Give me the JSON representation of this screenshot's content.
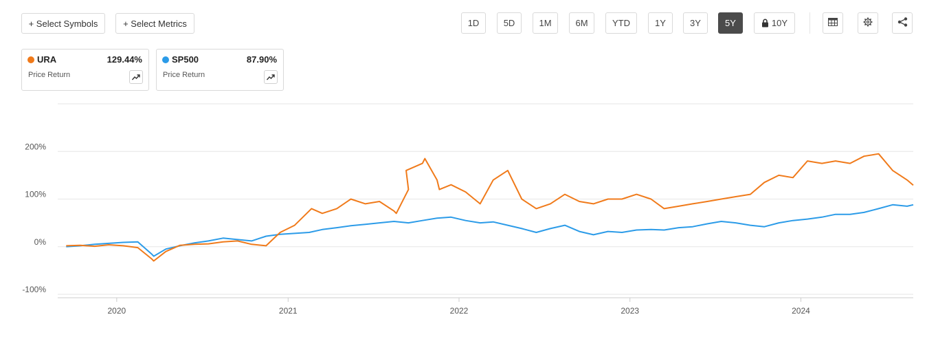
{
  "toolbar": {
    "select_symbols": "+ Select Symbols",
    "select_metrics": "+ Select Metrics",
    "periods": [
      "1D",
      "5D",
      "1M",
      "6M",
      "YTD",
      "1Y",
      "3Y",
      "5Y",
      "10Y"
    ],
    "active_period": "5Y",
    "locked_period": "10Y",
    "icons": [
      "table-icon",
      "settings-icon",
      "share-icon"
    ]
  },
  "legend": [
    {
      "symbol": "URA",
      "value": "129.44%",
      "metric": "Price Return",
      "color": "#f07a1a"
    },
    {
      "symbol": "SP500",
      "value": "87.90%",
      "metric": "Price Return",
      "color": "#2b9be8"
    }
  ],
  "chart_data": {
    "type": "line",
    "x_range": [
      "2019-08-28",
      "2024-08-28"
    ],
    "xticks": [
      "2020",
      "2021",
      "2022",
      "2023",
      "2024"
    ],
    "ylim": [
      -100,
      300
    ],
    "yticks": [
      "-100%",
      "0%",
      "100%",
      "200%"
    ],
    "grid": true,
    "series": [
      {
        "name": "URA",
        "color": "#f07a1a",
        "x": [
          "2019-09",
          "2019-10",
          "2019-11",
          "2019-12",
          "2020-01",
          "2020-02",
          "2020-03",
          "2020-03-20",
          "2020-04",
          "2020-05",
          "2020-06",
          "2020-07",
          "2020-08",
          "2020-09",
          "2020-10",
          "2020-11",
          "2020-12",
          "2021-01",
          "2021-02",
          "2021-02-20",
          "2021-03",
          "2021-04",
          "2021-05",
          "2021-06",
          "2021-07",
          "2021-08",
          "2021-08-20",
          "2021-09",
          "2021-09-10",
          "2021-10",
          "2021-10-20",
          "2021-11",
          "2021-11-20",
          "2021-12",
          "2022-01",
          "2022-02",
          "2022-03",
          "2022-04",
          "2022-05",
          "2022-06",
          "2022-07",
          "2022-08",
          "2022-09",
          "2022-10",
          "2022-11",
          "2022-12",
          "2023-01",
          "2023-02",
          "2023-03",
          "2023-04",
          "2023-05",
          "2023-06",
          "2023-07",
          "2023-08",
          "2023-09",
          "2023-10",
          "2023-11",
          "2023-12",
          "2024-01",
          "2024-02",
          "2024-03",
          "2024-04",
          "2024-05",
          "2024-06",
          "2024-07",
          "2024-08",
          "2024-08-28"
        ],
        "values": [
          2,
          3,
          1,
          4,
          2,
          -2,
          -25,
          -30,
          -10,
          3,
          5,
          6,
          10,
          12,
          5,
          2,
          30,
          45,
          75,
          80,
          70,
          80,
          100,
          90,
          95,
          75,
          70,
          120,
          160,
          175,
          185,
          140,
          120,
          130,
          115,
          90,
          140,
          160,
          100,
          80,
          90,
          110,
          95,
          90,
          100,
          100,
          110,
          100,
          80,
          85,
          90,
          95,
          100,
          105,
          110,
          135,
          150,
          145,
          180,
          175,
          180,
          175,
          190,
          195,
          160,
          140,
          129
        ]
      },
      {
        "name": "SP500",
        "color": "#2b9be8",
        "x": [
          "2019-09",
          "2019-10",
          "2019-11",
          "2019-12",
          "2020-01",
          "2020-02",
          "2020-03",
          "2020-03-20",
          "2020-04",
          "2020-05",
          "2020-06",
          "2020-07",
          "2020-08",
          "2020-09",
          "2020-10",
          "2020-11",
          "2020-12",
          "2021-01",
          "2021-02",
          "2021-03",
          "2021-04",
          "2021-05",
          "2021-06",
          "2021-07",
          "2021-08",
          "2021-09",
          "2021-10",
          "2021-11",
          "2021-12",
          "2022-01",
          "2022-02",
          "2022-03",
          "2022-04",
          "2022-05",
          "2022-06",
          "2022-07",
          "2022-08",
          "2022-09",
          "2022-10",
          "2022-11",
          "2022-12",
          "2023-01",
          "2023-02",
          "2023-03",
          "2023-04",
          "2023-05",
          "2023-06",
          "2023-07",
          "2023-08",
          "2023-09",
          "2023-10",
          "2023-11",
          "2023-12",
          "2024-01",
          "2024-02",
          "2024-03",
          "2024-04",
          "2024-05",
          "2024-06",
          "2024-07",
          "2024-08",
          "2024-08-28"
        ],
        "values": [
          0,
          2,
          5,
          7,
          9,
          10,
          -15,
          -20,
          -5,
          2,
          8,
          12,
          18,
          15,
          12,
          22,
          26,
          28,
          30,
          36,
          40,
          44,
          47,
          50,
          53,
          50,
          55,
          60,
          62,
          55,
          50,
          52,
          45,
          38,
          30,
          38,
          45,
          32,
          25,
          32,
          30,
          35,
          36,
          35,
          40,
          42,
          48,
          53,
          50,
          45,
          42,
          50,
          55,
          58,
          62,
          68,
          68,
          72,
          80,
          88,
          85,
          88
        ]
      }
    ]
  }
}
